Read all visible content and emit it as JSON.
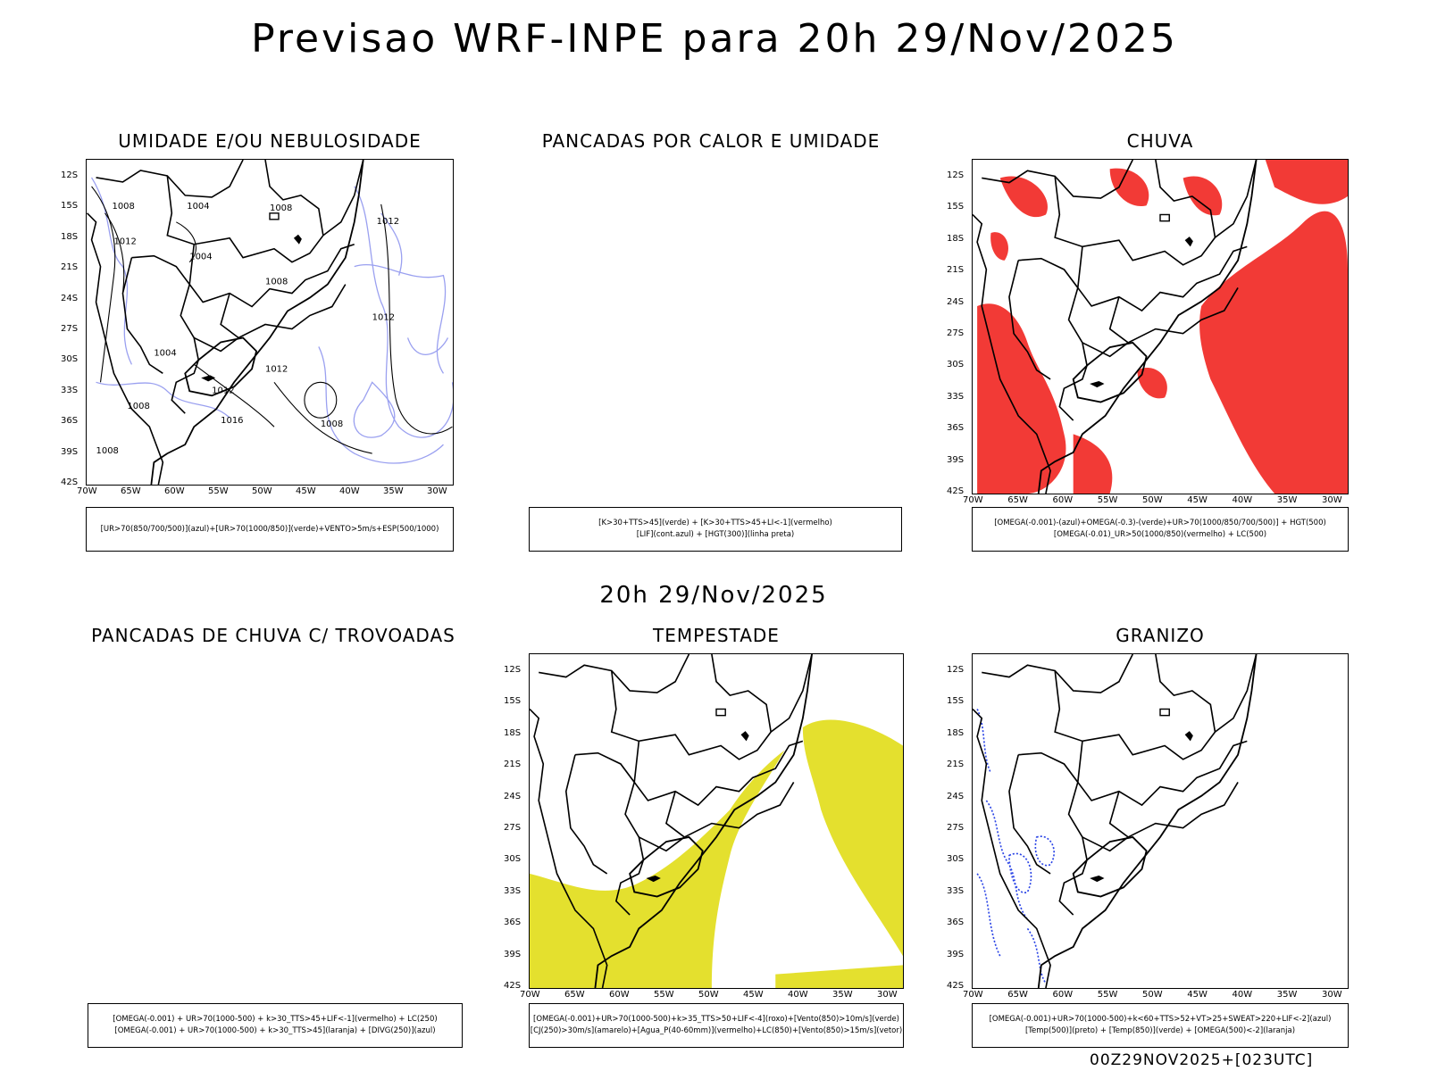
{
  "title": "Previsao WRF-INPE  para 20h 29/Nov/2025",
  "subtitle_time": "20h 29/Nov/2025",
  "footer": "00Z29NOV2025+[023UTC]",
  "lat_labels": [
    "12S",
    "15S",
    "18S",
    "21S",
    "24S",
    "27S",
    "30S",
    "33S",
    "36S",
    "39S",
    "42S"
  ],
  "lon_labels": [
    "70W",
    "65W",
    "60W",
    "55W",
    "50W",
    "45W",
    "40W",
    "35W",
    "30W"
  ],
  "isobar_labels": [
    "1004",
    "1008",
    "1012",
    "1016"
  ],
  "colors": {
    "blue_contour": "#9aa0f0",
    "rain_red": "#f23a36",
    "storm_yellow": "#e4e02e",
    "hail_blue": "#2b45e6"
  },
  "panels": {
    "umidade": {
      "title": "UMIDADE E/OU NEBULOSIDADE",
      "legend": [
        "[UR>70(850/700/500)](azul)+[UR>70(1000/850)](verde)+VENTO>5m/s+ESP(500/1000)"
      ]
    },
    "pancadas_calor": {
      "title": "PANCADAS POR CALOR E UMIDADE",
      "legend": [
        "[K>30+TTS>45](verde)  +  [K>30+TTS>45+LI<-1](vermelho)",
        "[LIF](cont.azul)  +  [HGT(300)](linha preta)"
      ]
    },
    "chuva": {
      "title": "CHUVA",
      "legend": [
        "[OMEGA(-0.001)-(azul)+OMEGA(-0.3)-(verde)+UR>70(1000/850/700/500)]  +  HGT(500)",
        "[OMEGA(-0.01)_UR>50(1000/850)(vermelho)  +  LC(500)"
      ]
    },
    "trovoadas": {
      "title": "PANCADAS DE CHUVA C/ TROVOADAS",
      "legend": [
        "[OMEGA(-0.001)  +  UR>70(1000-500)  +  k>30_TTS>45+LIF<-1](vermelho)  +  LC(250)",
        "[OMEGA(-0.001)  +  UR>70(1000-500)  +  k>30_TTS>45](laranja)  +  [DIVG(250)](azul)"
      ]
    },
    "tempestade": {
      "title": "TEMPESTADE",
      "legend": [
        "[OMEGA(-0.001)+UR>70(1000-500)+k>35_TTS>50+LIF<-4](roxo)+[Vento(850)>10m/s](verde)",
        "[CJ(250)>30m/s](amarelo)+[Agua_P(40-60mm)](vermelho)+LC(850)+[Vento(850)>15m/s](vetor)"
      ]
    },
    "granizo": {
      "title": "GRANIZO",
      "legend": [
        "[OMEGA(-0.001)+UR>70(1000-500)+k<60+TTS>52+VT>25+SWEAT>220+LIF<-2](azul)",
        "[Temp(500)](preto)  +  [Temp(850)](verde)  +  [OMEGA(500)<-2](laranja)"
      ]
    }
  }
}
